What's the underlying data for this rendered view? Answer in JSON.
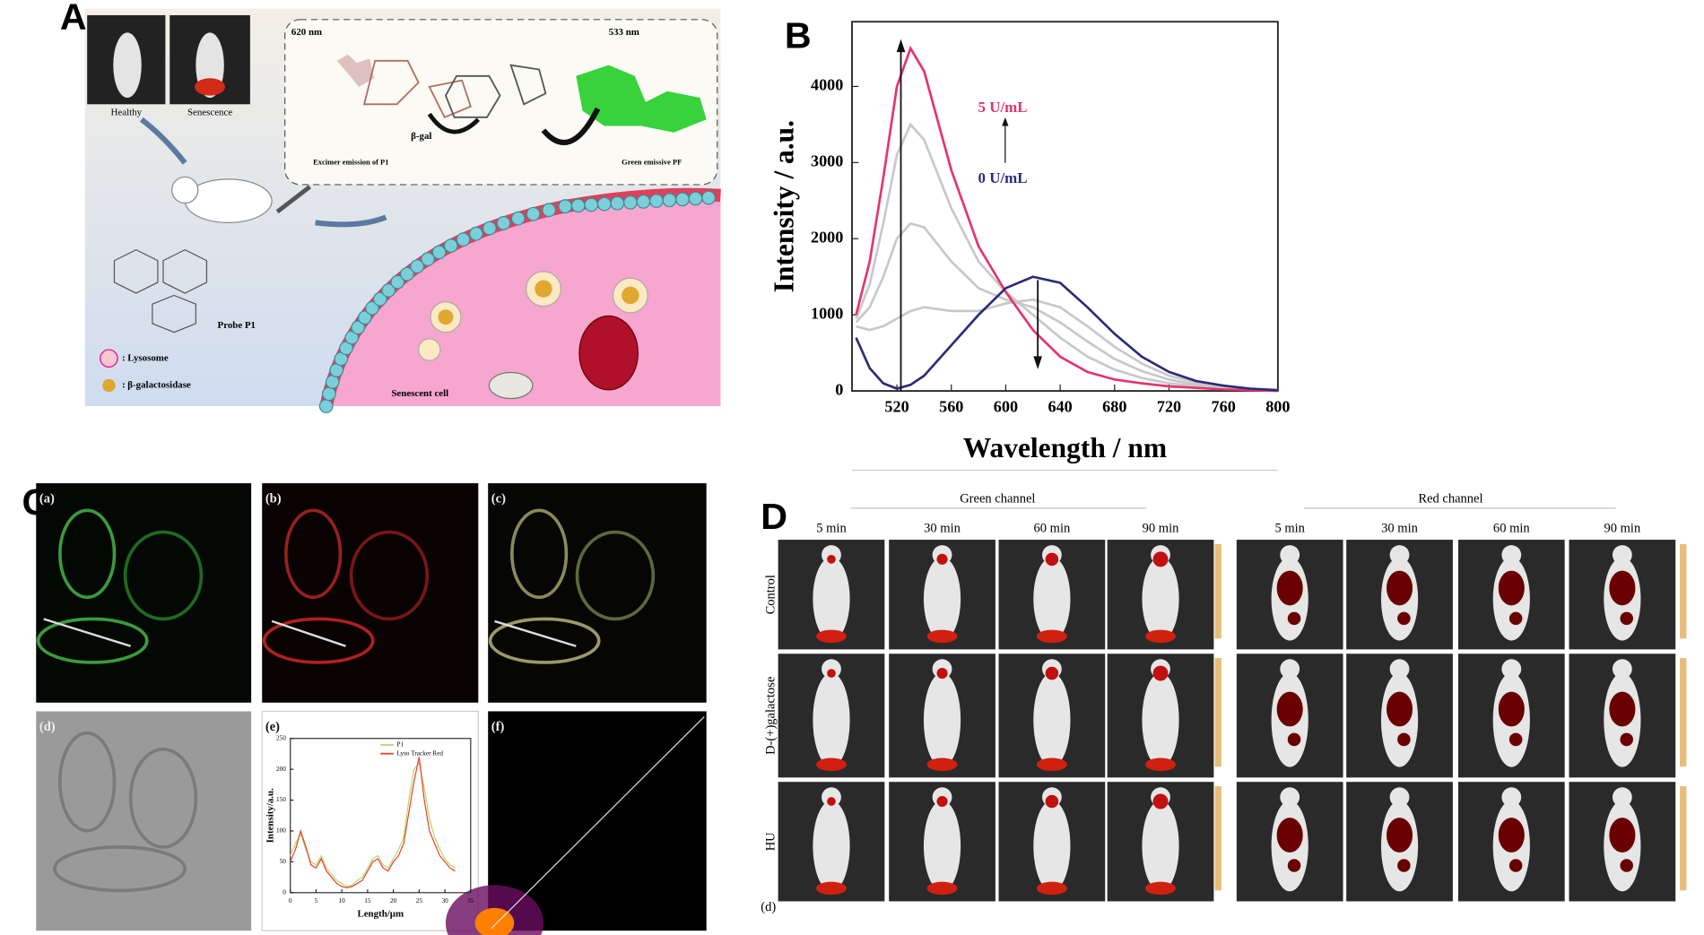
{
  "chart_data": [
    {
      "type": "line",
      "x_label": "Wavelength / nm",
      "y_label": "Intensity / a.u.",
      "x": [
        490,
        500,
        510,
        520,
        530,
        540,
        560,
        580,
        600,
        620,
        640,
        660,
        680,
        700,
        720,
        740,
        760,
        780,
        800
      ],
      "xlim": [
        487,
        800
      ],
      "ylim": [
        0,
        4850
      ],
      "xticks": [
        520,
        560,
        600,
        640,
        680,
        720,
        760,
        800
      ],
      "yticks": [
        0,
        1000,
        2000,
        3000,
        4000
      ],
      "grid": false,
      "series": [
        {
          "color": "#c8c8c8",
          "values": [
            850,
            800,
            850,
            950,
            1050,
            1100,
            1050,
            1050,
            1150,
            1200,
            1100,
            850,
            580,
            360,
            200,
            110,
            55,
            25,
            8
          ]
        },
        {
          "color": "#c8c8c8",
          "values": [
            900,
            1100,
            1500,
            2000,
            2200,
            2150,
            1700,
            1350,
            1200,
            1100,
            900,
            650,
            420,
            260,
            150,
            80,
            40,
            20,
            5
          ]
        },
        {
          "color": "#c8c8c8",
          "values": [
            950,
            1400,
            2200,
            3100,
            3500,
            3300,
            2400,
            1700,
            1300,
            1000,
            700,
            450,
            280,
            170,
            100,
            60,
            30,
            15,
            5
          ]
        },
        {
          "name": "5 U/mL",
          "color": "#e8336b",
          "values": [
            1000,
            1700,
            2800,
            4000,
            4500,
            4200,
            2900,
            1900,
            1300,
            800,
            450,
            250,
            150,
            100,
            60,
            40,
            20,
            10,
            0
          ]
        },
        {
          "name": "0 U/mL",
          "color": "#2b2b7a",
          "values": [
            700,
            300,
            100,
            30,
            80,
            200,
            600,
            1000,
            1350,
            1500,
            1420,
            1100,
            750,
            450,
            250,
            130,
            70,
            30,
            10
          ]
        }
      ]
    },
    {
      "type": "line",
      "x_label": "Length/μm",
      "y_label": "Intensity/a.u.",
      "x": [
        0,
        1,
        2,
        3,
        4,
        5,
        6,
        7,
        8,
        9,
        10,
        11,
        12,
        13,
        14,
        15,
        16,
        17,
        18,
        19,
        20,
        21,
        22,
        23,
        24,
        25,
        26,
        27,
        28,
        29,
        30,
        31,
        32
      ],
      "xlim": [
        0,
        35
      ],
      "ylim": [
        0,
        250
      ],
      "xticks": [
        0,
        5,
        10,
        15,
        20,
        25,
        30,
        35
      ],
      "yticks": [
        0,
        50,
        100,
        150,
        200,
        250
      ],
      "legend": "top-right",
      "series": [
        {
          "name": "P1",
          "color": "#b5d96a",
          "values": [
            60,
            80,
            95,
            70,
            50,
            45,
            60,
            40,
            30,
            20,
            15,
            10,
            12,
            20,
            25,
            40,
            55,
            60,
            45,
            40,
            55,
            70,
            90,
            150,
            200,
            210,
            170,
            120,
            90,
            70,
            55,
            45,
            40
          ]
        },
        {
          "name": "Lyso Tracker Red",
          "color": "#e8402a",
          "values": [
            50,
            70,
            100,
            75,
            45,
            40,
            55,
            35,
            25,
            15,
            10,
            8,
            10,
            15,
            20,
            35,
            50,
            55,
            40,
            35,
            50,
            60,
            80,
            130,
            180,
            220,
            150,
            100,
            80,
            60,
            50,
            40,
            35
          ]
        }
      ]
    }
  ],
  "panels": {
    "A": {
      "label": "A",
      "emission_red": "620 nm",
      "emission_green": "533 nm",
      "healthy": "Healthy",
      "senescence": "Senescence",
      "enzyme": "β-gal",
      "excimer": "Excimer emission of P1",
      "green_emissive": "Green emissive PF",
      "probe": "Probe P1",
      "lysosome": ": Lysosome",
      "galactosidase": ": β-galactosidase",
      "cell": "Senescent cell"
    },
    "B": {
      "label": "B"
    },
    "C": {
      "label": "C",
      "subpanels": [
        "(a)",
        "(b)",
        "(c)",
        "(d)",
        "(e)",
        "(f)"
      ]
    },
    "D": {
      "label": "D",
      "green_channel": "Green channel",
      "red_channel": "Red channel",
      "times": [
        "5 min",
        "30 min",
        "60 min",
        "90 min"
      ],
      "rows": [
        "Control",
        "D-(+)galactose",
        "HU"
      ],
      "corner": "(d)"
    }
  }
}
